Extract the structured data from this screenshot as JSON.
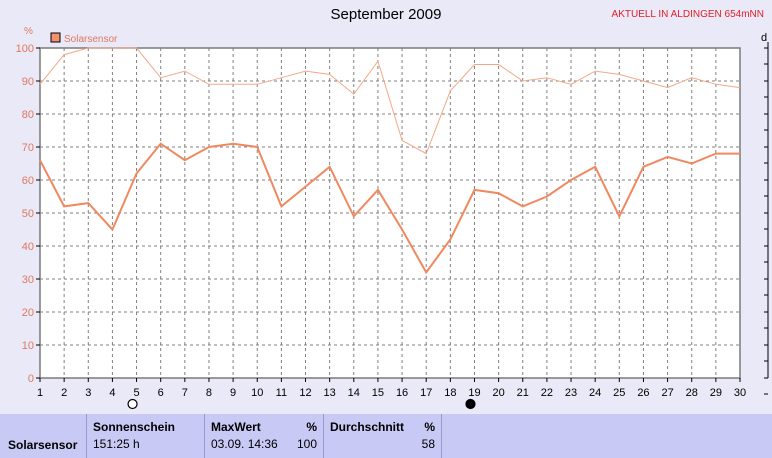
{
  "header": {
    "title": "September 2009",
    "badge": "AKTUELL IN ALDINGEN 654mNN",
    "y_unit": "%",
    "right_label": "d"
  },
  "legend": {
    "label": "Solarsensor",
    "color": "#f09070"
  },
  "chart_data": {
    "type": "line",
    "title": "September 2009",
    "x": [
      1,
      2,
      3,
      4,
      5,
      6,
      7,
      8,
      9,
      10,
      11,
      12,
      13,
      14,
      15,
      16,
      17,
      18,
      19,
      20,
      21,
      22,
      23,
      24,
      25,
      26,
      27,
      28,
      29,
      30
    ],
    "ylim": [
      0,
      100
    ],
    "yticks": [
      0,
      10,
      20,
      30,
      40,
      50,
      60,
      70,
      80,
      90,
      100
    ],
    "ylabel": "%",
    "grid": true,
    "series": [
      {
        "name": "Solarsensor",
        "color": "#f4a888",
        "values": [
          89,
          98,
          100,
          100,
          100,
          91,
          93,
          89,
          89,
          89,
          91,
          93,
          92,
          86,
          96,
          72,
          68,
          87,
          95,
          95,
          90,
          91,
          89,
          93,
          92,
          90,
          88,
          91,
          89,
          88
        ]
      },
      {
        "name": "Solarsensor",
        "color": "#f08860",
        "values": [
          66,
          52,
          53,
          45,
          62,
          71,
          66,
          70,
          71,
          70,
          52,
          58,
          64,
          49,
          57,
          45,
          32,
          42,
          57,
          56,
          52,
          55,
          60,
          64,
          49,
          64,
          67,
          65,
          68,
          68
        ]
      }
    ],
    "moon_markers": [
      {
        "x": 5,
        "phase": "full"
      },
      {
        "x": 19,
        "phase": "new"
      }
    ]
  },
  "table": {
    "row_label": "Solarsensor",
    "sonnenschein_header": "Sonnenschein",
    "sonnenschein_value": "151:25 h",
    "maxwert_header": "MaxWert",
    "maxwert_unit": "%",
    "maxwert_date": "03.09.  14:36",
    "maxwert_value": "100",
    "durchschnitt_header": "Durchschnitt",
    "durchschnitt_unit": "%",
    "durchschnitt_value": "58"
  }
}
